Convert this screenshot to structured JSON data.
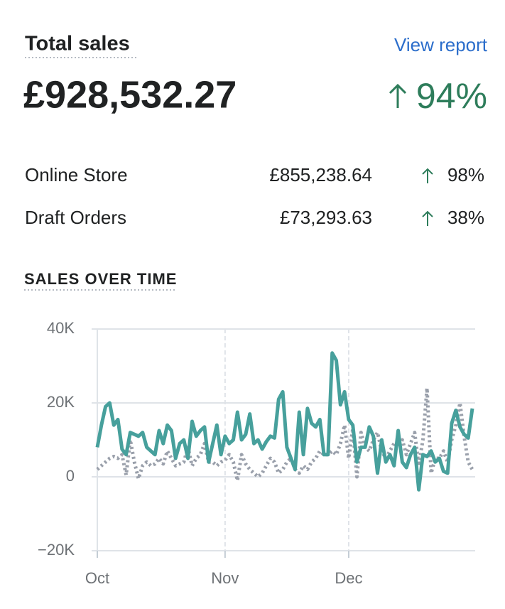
{
  "header": {
    "title": "Total sales",
    "link": "View report",
    "total": "£928,532.27",
    "change": "94%"
  },
  "breakdown": {
    "rows": [
      [
        "Online Store",
        "£855,238.64",
        "98%"
      ],
      [
        "Draft Orders",
        "£73,293.63",
        "38%"
      ]
    ]
  },
  "section_title": "SALES OVER TIME",
  "chart_data": {
    "type": "line",
    "categories": [
      "Oct",
      null,
      null,
      null,
      null,
      null,
      null,
      null,
      null,
      null,
      null,
      null,
      null,
      null,
      null,
      null,
      null,
      null,
      null,
      null,
      null,
      null,
      null,
      null,
      null,
      null,
      null,
      null,
      null,
      null,
      null,
      "Nov",
      null,
      null,
      null,
      null,
      null,
      null,
      null,
      null,
      null,
      null,
      null,
      null,
      null,
      null,
      null,
      null,
      null,
      null,
      null,
      null,
      null,
      null,
      null,
      null,
      null,
      null,
      null,
      null,
      null,
      "Dec",
      null,
      null,
      null,
      null,
      null,
      null,
      null,
      null,
      null,
      null,
      null,
      null,
      null,
      null,
      null,
      null,
      null,
      null,
      null,
      null,
      null,
      null,
      null,
      null,
      null,
      null,
      null,
      null,
      null,
      null
    ],
    "series": [
      {
        "color": "#9aa0ab",
        "dashed": true,
        "values": [
          2000,
          3000,
          4000,
          5000,
          5500,
          5000,
          6000,
          500,
          10000,
          4000,
          -500,
          3000,
          4000,
          3000,
          3500,
          5000,
          3500,
          7000,
          5000,
          3000,
          3500,
          4000,
          8000,
          3000,
          5000,
          6000,
          9000,
          4000,
          4000,
          3000,
          4000,
          4500,
          6000,
          4000,
          -1000,
          6000,
          3500,
          2000,
          1000,
          0,
          1000,
          3000,
          5000,
          4000,
          1000,
          2000,
          4000,
          5000,
          2000,
          1000,
          3000,
          2000,
          4000,
          5000,
          7000,
          6000,
          6000,
          7000,
          6000,
          9000,
          14000,
          5000,
          13000,
          0,
          12000,
          8000,
          7000,
          10000,
          12000,
          7000,
          5000,
          7000,
          9000,
          8000,
          10000,
          6000,
          9000,
          12000,
          3000,
          10000,
          24000,
          1000,
          5000,
          5000,
          7000,
          4000,
          10000,
          14000,
          20000,
          11000,
          4000,
          2000
        ]
      },
      {
        "color": "#47a09c",
        "dashed": false,
        "values": [
          8000,
          14000,
          19000,
          20000,
          14000,
          15500,
          7500,
          6000,
          12000,
          11500,
          11000,
          12000,
          8000,
          7000,
          6000,
          12500,
          9000,
          14000,
          12500,
          5000,
          9000,
          10000,
          5000,
          15000,
          11000,
          12500,
          13500,
          4000,
          9000,
          14000,
          6000,
          11000,
          9000,
          10000,
          17500,
          10000,
          11500,
          17000,
          9000,
          10000,
          7500,
          9500,
          11000,
          10500,
          21000,
          23000,
          8000,
          5000,
          2000,
          17500,
          6000,
          18500,
          14500,
          13500,
          15500,
          6000,
          6000,
          33500,
          31500,
          19500,
          23000,
          15500,
          14000,
          4000,
          8000,
          8000,
          13500,
          11000,
          1000,
          10000,
          4000,
          6000,
          3000,
          12500,
          4000,
          2500,
          6000,
          8000,
          -3500,
          6000,
          5500,
          7000,
          4000,
          5000,
          1500,
          1000,
          14500,
          18000,
          13500,
          11500,
          10500,
          18500
        ]
      }
    ],
    "ylim": [
      -20000,
      40000
    ],
    "yticks": [
      {
        "value": 40000,
        "label": "40K"
      },
      {
        "value": 20000,
        "label": "20K"
      },
      0,
      {
        "value": -20000,
        "label": "−20K"
      }
    ],
    "grid": true
  }
}
